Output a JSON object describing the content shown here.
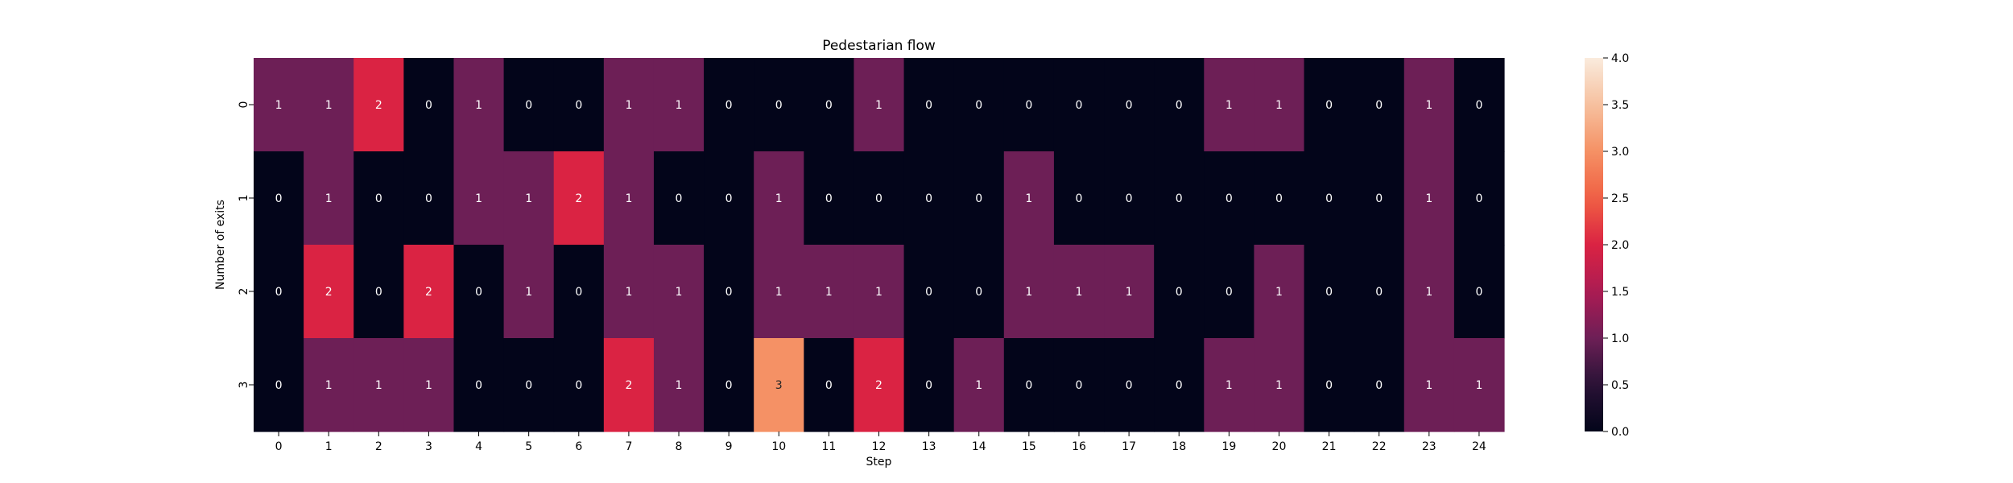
{
  "chart_data": {
    "type": "heatmap",
    "title": "Pedestarian flow",
    "xlabel": "Step",
    "ylabel": "Number of exits",
    "x": [
      "0",
      "1",
      "2",
      "3",
      "4",
      "5",
      "6",
      "7",
      "8",
      "9",
      "10",
      "11",
      "12",
      "13",
      "14",
      "15",
      "16",
      "17",
      "18",
      "19",
      "20",
      "21",
      "22",
      "23",
      "24"
    ],
    "y": [
      "0",
      "1",
      "2",
      "3"
    ],
    "values": [
      [
        1,
        1,
        2,
        0,
        1,
        0,
        0,
        1,
        1,
        0,
        0,
        0,
        1,
        0,
        0,
        0,
        0,
        0,
        0,
        1,
        1,
        0,
        0,
        1,
        0
      ],
      [
        0,
        1,
        0,
        0,
        1,
        1,
        2,
        1,
        0,
        0,
        1,
        0,
        0,
        0,
        0,
        1,
        0,
        0,
        0,
        0,
        0,
        0,
        0,
        1,
        0
      ],
      [
        0,
        2,
        0,
        2,
        0,
        1,
        0,
        1,
        1,
        0,
        1,
        1,
        1,
        0,
        0,
        1,
        1,
        1,
        0,
        0,
        1,
        0,
        0,
        1,
        0
      ],
      [
        0,
        1,
        1,
        1,
        0,
        0,
        0,
        2,
        1,
        0,
        3,
        0,
        2,
        0,
        1,
        0,
        0,
        0,
        0,
        1,
        1,
        0,
        0,
        1,
        1
      ]
    ],
    "vmin": 0,
    "vmax": 4,
    "colorbar_ticks": [
      "0.0",
      "0.5",
      "1.0",
      "1.5",
      "2.0",
      "2.5",
      "3.0",
      "3.5",
      "4.0"
    ],
    "colormap": "rocket",
    "annotated": true
  }
}
